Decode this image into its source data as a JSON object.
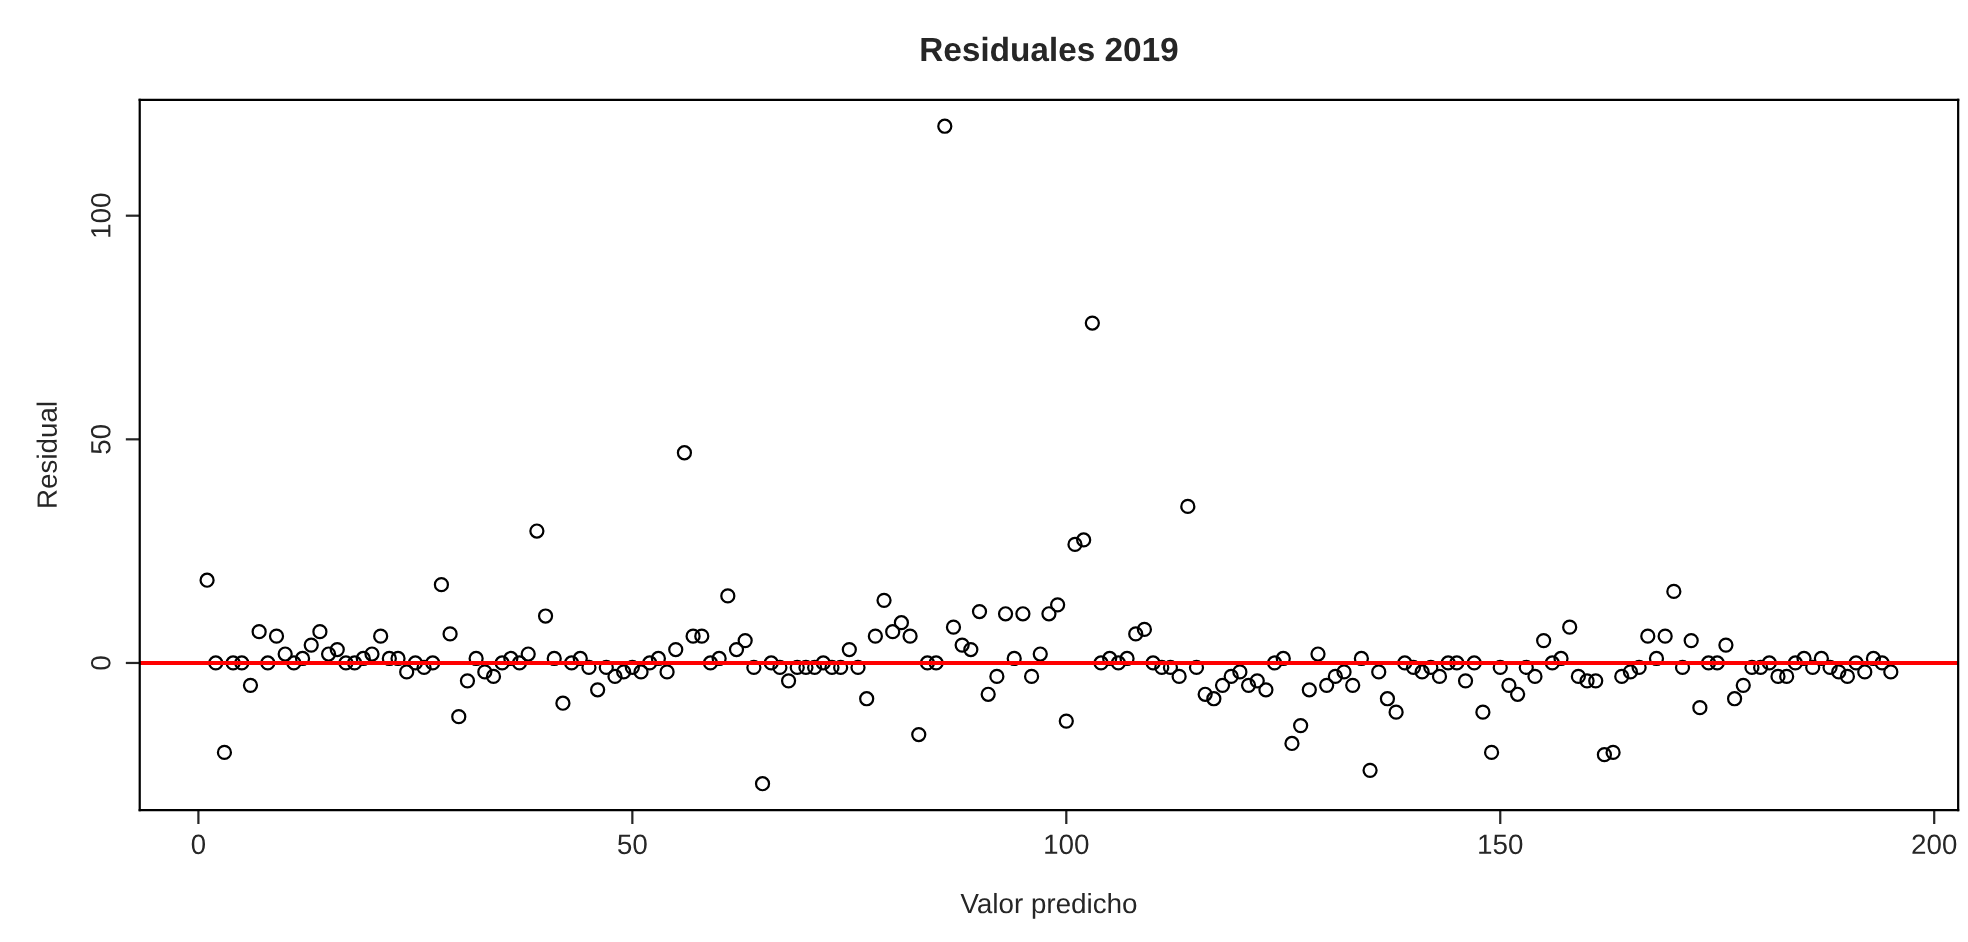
{
  "chart_data": {
    "type": "scatter",
    "title": "Residuales 2019",
    "xlabel": "Valor predicho",
    "ylabel": "Residual",
    "x": [
      1,
      2,
      3,
      4,
      5,
      6,
      7,
      8,
      9,
      10,
      11,
      12,
      13,
      14,
      15,
      16,
      17,
      18,
      19,
      20,
      21,
      22,
      23,
      24,
      25,
      26,
      27,
      28,
      29,
      30,
      31,
      32,
      33,
      34,
      35,
      36,
      37,
      38,
      39,
      40,
      41,
      42,
      43,
      44,
      45,
      46,
      47,
      48,
      49,
      50,
      51,
      52,
      53,
      54,
      55,
      56,
      57,
      58,
      59,
      60,
      61,
      62,
      63,
      64,
      65,
      66,
      67,
      68,
      69,
      70,
      71,
      72,
      73,
      74,
      75,
      76,
      77,
      78,
      79,
      80,
      81,
      82,
      83,
      84,
      85,
      86,
      87,
      88,
      89,
      90,
      91,
      92,
      93,
      94,
      95,
      96,
      97,
      98,
      99,
      100,
      101,
      102,
      103,
      104,
      105,
      106,
      107,
      108,
      109,
      110,
      111,
      112,
      113,
      114,
      115,
      116,
      117,
      118,
      119,
      120,
      121,
      122,
      123,
      124,
      125,
      126,
      127,
      128,
      129,
      130,
      131,
      132,
      133,
      134,
      135,
      136,
      137,
      138,
      139,
      140,
      141,
      142,
      143,
      144,
      145,
      146,
      147,
      148,
      149,
      150,
      151,
      152,
      153,
      154,
      155,
      156,
      157,
      158,
      159,
      160,
      161,
      162,
      163,
      164,
      165,
      166,
      167,
      168,
      169,
      170,
      171,
      172,
      173,
      174,
      175,
      176,
      177,
      178,
      179,
      180,
      181,
      182,
      183,
      184,
      185,
      186,
      187,
      188,
      189,
      190,
      191,
      192,
      193,
      194,
      195
    ],
    "values": [
      18.5,
      0,
      -20,
      0,
      0,
      -5,
      7,
      0,
      6,
      2,
      0,
      1,
      4,
      7,
      2,
      3,
      0,
      0,
      1,
      2,
      6,
      1,
      1,
      -2,
      0,
      -1,
      0,
      17.5,
      6.5,
      -12,
      -4,
      1,
      -2,
      -3,
      0,
      1,
      0,
      2,
      29.5,
      10.5,
      1,
      -9,
      0,
      1,
      -1,
      -6,
      -1,
      -3,
      -2,
      -1,
      -2,
      0,
      1,
      -2,
      3,
      47,
      6,
      6,
      0,
      1,
      15,
      3,
      5,
      -1,
      -27,
      0,
      -1,
      -4,
      -1,
      -1,
      -1,
      0,
      -1,
      -1,
      3,
      -1,
      -8,
      6,
      14,
      7,
      9,
      6,
      -16,
      0,
      0,
      120,
      8,
      4,
      3,
      11.5,
      -7,
      -3,
      11,
      1,
      11,
      -3,
      2,
      11,
      13,
      -13,
      26.5,
      27.5,
      76,
      0,
      1,
      0,
      1,
      6.5,
      7.5,
      0,
      -1,
      -1,
      -3,
      35,
      -1,
      -7,
      -8,
      -5,
      -3,
      -2,
      -5,
      -4,
      -6,
      0,
      1,
      -18,
      -14,
      -6,
      2,
      -5,
      -3,
      -2,
      -5,
      1,
      -24,
      -2,
      -8,
      -11,
      0,
      -1,
      -2,
      -1,
      -3,
      0,
      0,
      -4,
      0,
      -11,
      -20,
      -1,
      -5,
      -7,
      -1,
      -3,
      5,
      0,
      1,
      8,
      -3,
      -4,
      -4,
      -20.5,
      -20,
      -3,
      -2,
      -1,
      6,
      1,
      6,
      16,
      -1,
      5,
      -10,
      0,
      0,
      4,
      -8,
      -5,
      -1,
      -1,
      0,
      -3,
      -3,
      0,
      1,
      -1,
      1,
      -1,
      -2,
      -3,
      0,
      -2,
      1,
      0,
      -2
    ],
    "color": "#000000",
    "marker": "circle",
    "xlim": [
      -6.76,
      202.76
    ],
    "ylim": [
      -32.9,
      125.9
    ],
    "xticks": [
      0,
      50,
      100,
      150,
      200
    ],
    "yticks": [
      0,
      50,
      100
    ],
    "ref_lines": [
      {
        "axis": "y",
        "value": 0,
        "color": "#ff0000"
      }
    ],
    "grid": false
  }
}
